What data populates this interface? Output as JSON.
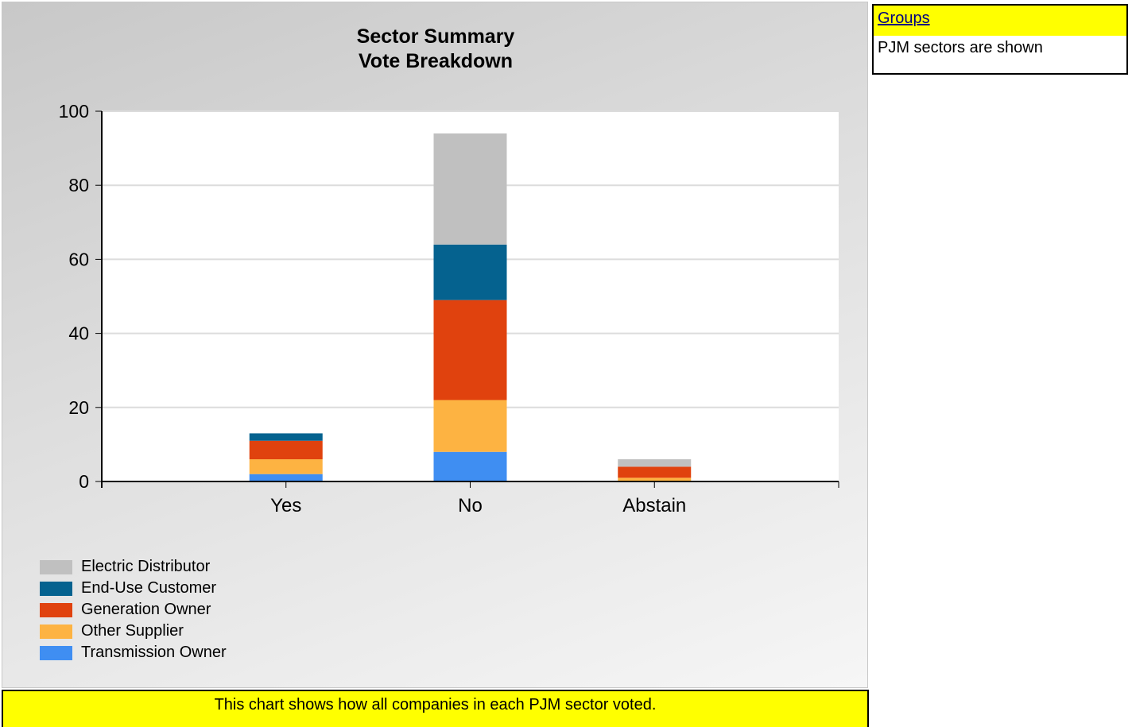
{
  "chart_data": {
    "type": "bar",
    "stacked": true,
    "title": [
      "Sector Summary",
      "Vote Breakdown"
    ],
    "categories": [
      "Yes",
      "No",
      "Abstain"
    ],
    "ylim": [
      0,
      100
    ],
    "yticks": [
      0,
      20,
      40,
      60,
      80,
      100
    ],
    "grid": true,
    "legend_placement": "bottom-left",
    "series": [
      {
        "name": "Transmission Owner",
        "color": "#3f8ef2",
        "values": [
          2,
          8,
          0
        ]
      },
      {
        "name": "Other Supplier",
        "color": "#fdb342",
        "values": [
          4,
          14,
          1
        ]
      },
      {
        "name": "Generation Owner",
        "color": "#e0420e",
        "values": [
          5,
          27,
          3
        ]
      },
      {
        "name": "End-Use Customer",
        "color": "#05628f",
        "values": [
          2,
          15,
          0
        ]
      },
      {
        "name": "Electric Distributor",
        "color": "#c0c0c0",
        "values": [
          0,
          30,
          2
        ]
      }
    ],
    "legend_order": [
      "Electric Distributor",
      "End-Use Customer",
      "Generation Owner",
      "Other Supplier",
      "Transmission Owner"
    ]
  },
  "groups": {
    "header": "Groups",
    "text": "PJM sectors are shown"
  },
  "footer": {
    "text": "This chart shows how all companies in each PJM sector voted."
  }
}
